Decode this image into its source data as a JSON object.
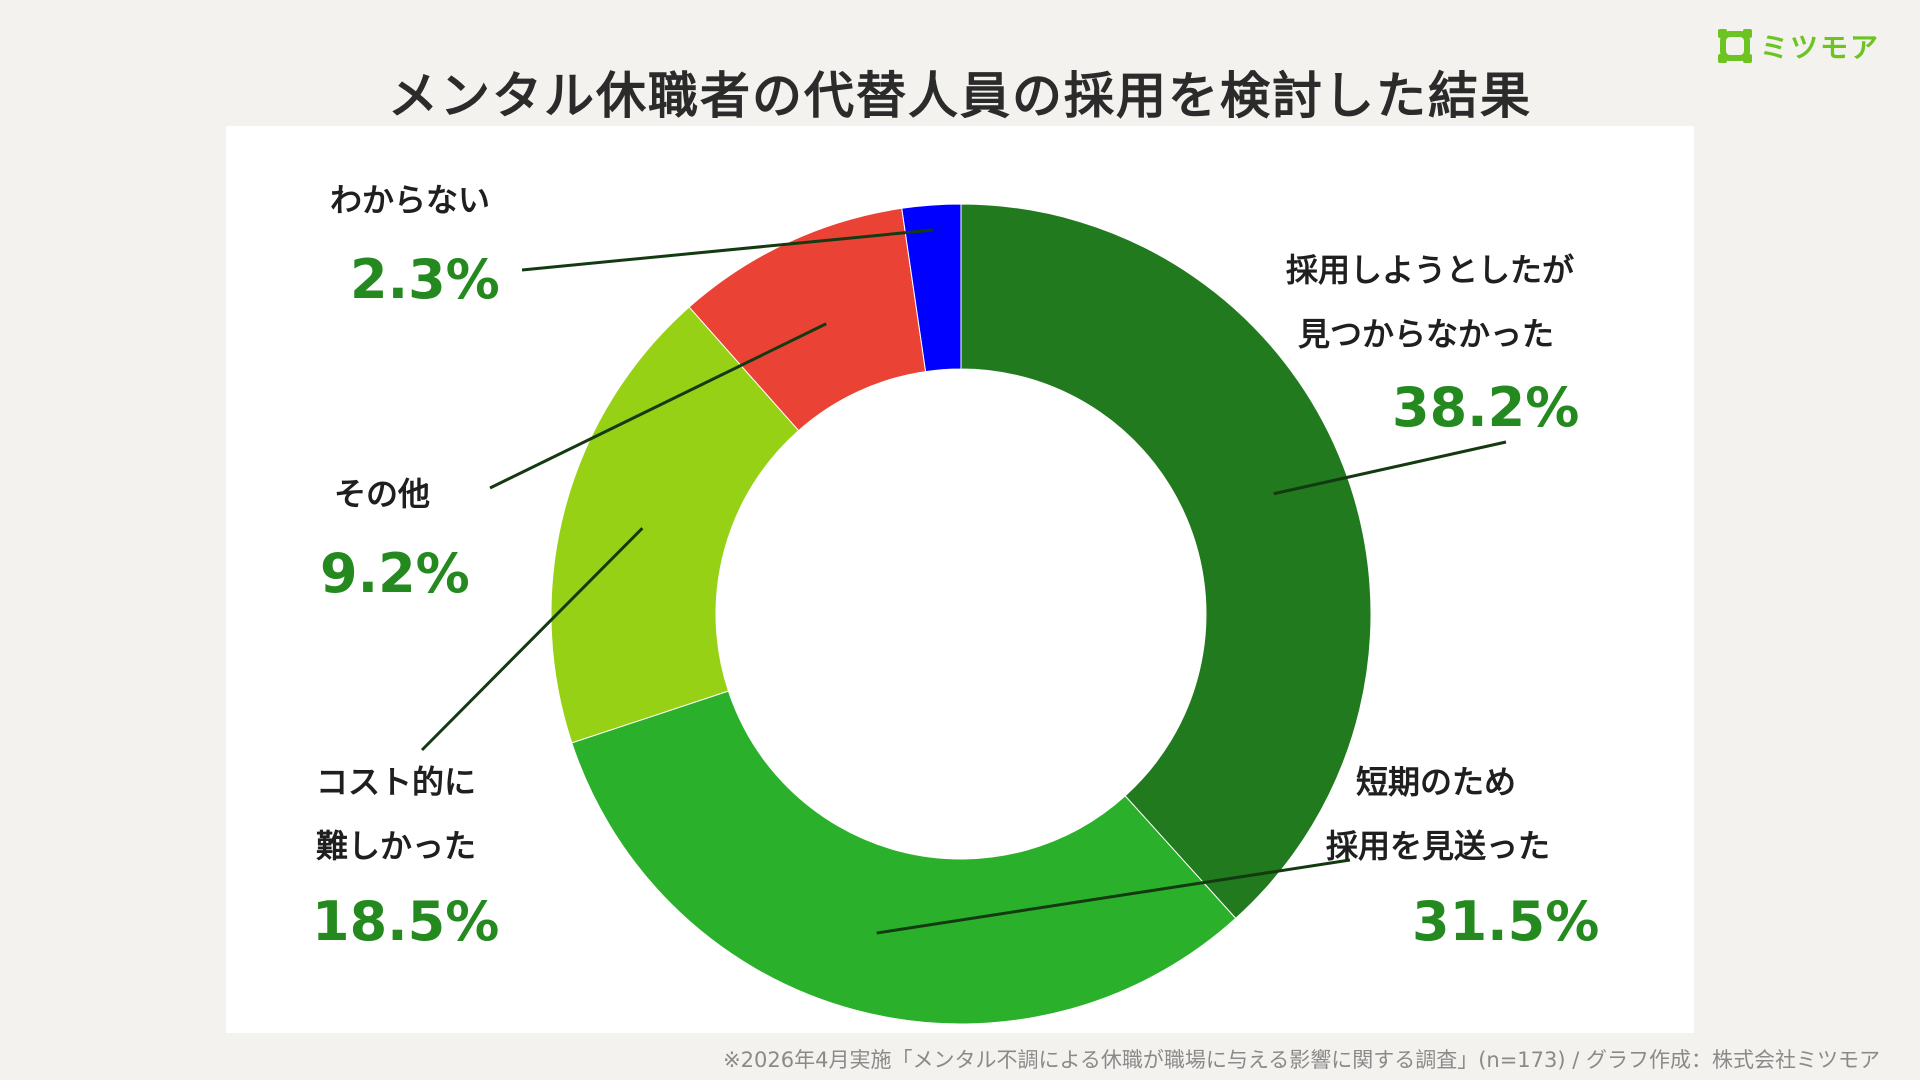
{
  "header": {
    "title": "メンタル休職者の代替人員の採用を検討した結果",
    "brand": "ミツモア",
    "brand_color": "#6cc421"
  },
  "chart_data": {
    "type": "pie",
    "variant": "donut",
    "title": "メンタル休職者の代替人員の採用を検討した結果",
    "start_angle_deg": 0,
    "direction": "clockwise",
    "slices": [
      {
        "label_lines": [
          "採用しようとしたが",
          "見つからなかった"
        ],
        "label": "採用しようとしたが見つからなかった",
        "value": 38.2,
        "value_label": "38.2%",
        "color": "#227a1e"
      },
      {
        "label_lines": [
          "短期のため",
          "採用を見送った"
        ],
        "label": "短期のため採用を見送った",
        "value": 31.5,
        "value_label": "31.5%",
        "color": "#2ab02a"
      },
      {
        "label_lines": [
          "コスト的に",
          "難しかった"
        ],
        "label": "コスト的に難しかった",
        "value": 18.5,
        "value_label": "18.5%",
        "color": "#97d115"
      },
      {
        "label_lines": [
          "その他"
        ],
        "label": "その他",
        "value": 9.2,
        "value_label": "9.2%",
        "color": "#ea4335"
      },
      {
        "label_lines": [
          "わからない"
        ],
        "label": "わからない",
        "value": 2.3,
        "value_label": "2.3%",
        "color": "#0000ff"
      }
    ]
  },
  "footer": {
    "source": "※2026年4月実施「メンタル不調による休職が職場に与える影響に関する調査」(n=173) / グラフ作成：株式会社ミツモア"
  }
}
